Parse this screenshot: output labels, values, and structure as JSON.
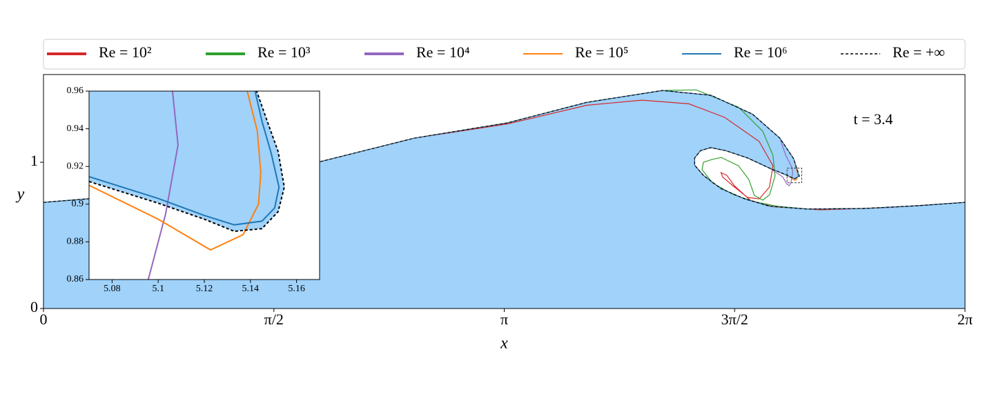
{
  "chart_data": [
    {
      "type": "line",
      "xlabel": "x",
      "ylabel": "y",
      "annotations": [
        "t = 3.4"
      ],
      "xlim": [
        0,
        6.2832
      ],
      "ylim": [
        0,
        1.6
      ],
      "xticks": [
        0,
        {
          "value": 1.5708,
          "label": "π/2"
        },
        {
          "value": 3.1416,
          "label": "π"
        },
        {
          "value": 4.7124,
          "label": "3π/2"
        },
        {
          "value": 6.2832,
          "label": "2π"
        }
      ],
      "yticks": [
        0,
        1
      ],
      "legend": "top-outside",
      "series": [
        {
          "name": "Re = 10²",
          "color": "#d62728",
          "x": [
            0,
            0.645,
            1.586,
            2.527,
            3.162,
            3.704,
            4.08,
            4.4,
            4.645,
            4.88,
            4.974,
            4.95,
            4.88,
            4.8,
            4.7,
            4.63,
            4.62,
            4.66,
            4.71,
            4.82,
            4.98,
            5.3,
            5.75,
            6.283
          ],
          "y": [
            0.726,
            0.778,
            0.929,
            1.165,
            1.262,
            1.39,
            1.425,
            1.4,
            1.307,
            1.142,
            0.976,
            0.83,
            0.75,
            0.76,
            0.84,
            0.9,
            0.93,
            0.91,
            0.84,
            0.74,
            0.695,
            0.675,
            0.69,
            0.726
          ]
        },
        {
          "name": "Re = 10³",
          "color": "#2ca02c",
          "x": [
            0,
            0.645,
            1.586,
            2.527,
            3.162,
            3.704,
            4.221,
            4.45,
            4.739,
            4.904,
            4.974,
            4.988,
            4.951,
            4.904,
            4.847,
            4.809,
            4.739,
            4.621,
            4.56,
            4.5,
            4.49,
            4.56,
            4.7,
            4.85,
            5.0,
            5.21,
            5.59,
            5.96,
            6.283
          ],
          "y": [
            0.726,
            0.778,
            0.929,
            1.165,
            1.269,
            1.41,
            1.491,
            1.495,
            1.377,
            1.212,
            1.047,
            0.906,
            0.778,
            0.741,
            0.774,
            0.882,
            0.976,
            1.033,
            1.02,
            1.0,
            0.95,
            0.86,
            0.78,
            0.73,
            0.7,
            0.68,
            0.684,
            0.703,
            0.726
          ]
        },
        {
          "name": "Re = 10⁴",
          "color": "#9467bd",
          "x": [
            0,
            0.645,
            1.586,
            2.527,
            3.162,
            3.704,
            4.221,
            4.551,
            4.833,
            5.021,
            5.06,
            5.105,
            5.108,
            5.103,
            5.096,
            5.085,
            5.07,
            5.04,
            4.95,
            4.8,
            4.65,
            4.55,
            4.48,
            4.44,
            4.44,
            4.5,
            4.62,
            4.78,
            4.95,
            5.21,
            5.59,
            5.96,
            6.283
          ],
          "y": [
            0.726,
            0.778,
            0.929,
            1.165,
            1.269,
            1.41,
            1.491,
            1.458,
            1.33,
            1.165,
            1.05,
            0.96,
            0.93,
            0.895,
            0.86,
            0.84,
            0.85,
            0.9,
            0.96,
            1.03,
            1.08,
            1.1,
            1.08,
            1.03,
            0.98,
            0.91,
            0.82,
            0.75,
            0.7,
            0.68,
            0.684,
            0.703,
            0.726
          ]
        },
        {
          "name": "Re = 10⁵",
          "color": "#ff7f0e",
          "x": [
            0,
            0.645,
            1.586,
            2.527,
            3.162,
            3.704,
            4.221,
            4.551,
            4.833,
            5.021,
            5.115,
            5.143,
            5.137,
            5.123,
            5.1,
            5.07,
            4.95,
            4.8,
            4.65,
            4.55,
            4.48,
            4.44,
            4.44,
            4.5,
            4.62,
            4.78,
            4.95,
            5.21,
            5.59,
            5.96,
            6.283
          ],
          "y": [
            0.726,
            0.778,
            0.929,
            1.165,
            1.269,
            1.41,
            1.491,
            1.458,
            1.33,
            1.165,
            1.024,
            0.917,
            0.884,
            0.876,
            0.892,
            0.91,
            0.96,
            1.03,
            1.08,
            1.1,
            1.08,
            1.03,
            0.98,
            0.91,
            0.82,
            0.75,
            0.7,
            0.68,
            0.684,
            0.703,
            0.726
          ]
        },
        {
          "name": "Re = 10⁶",
          "color": "#1f77b4",
          "x": [
            0,
            0.645,
            1.586,
            2.527,
            3.162,
            3.704,
            4.221,
            4.551,
            4.833,
            5.021,
            5.115,
            5.152,
            5.12,
            5.07,
            4.95,
            4.8,
            4.65,
            4.55,
            4.48,
            4.44,
            4.44,
            4.5,
            4.62,
            4.78,
            4.95,
            5.21,
            5.59,
            5.96,
            6.283
          ],
          "y": [
            0.726,
            0.778,
            0.929,
            1.165,
            1.269,
            1.41,
            1.491,
            1.458,
            1.33,
            1.165,
            1.024,
            0.905,
            0.888,
            0.91,
            0.96,
            1.03,
            1.08,
            1.1,
            1.08,
            1.03,
            0.98,
            0.91,
            0.82,
            0.75,
            0.7,
            0.68,
            0.684,
            0.703,
            0.726
          ]
        },
        {
          "name": "Re = +∞",
          "color": "#000000",
          "dash": true,
          "fill": {
            "color": "#a0d2fa",
            "to": "bottom"
          },
          "x": [
            0,
            0.645,
            1.586,
            2.527,
            3.162,
            3.704,
            4.221,
            4.551,
            4.833,
            5.021,
            5.115,
            5.154,
            5.12,
            5.07,
            4.95,
            4.8,
            4.65,
            4.55,
            4.48,
            4.44,
            4.44,
            4.5,
            4.62,
            4.78,
            4.95,
            5.21,
            5.59,
            5.96,
            6.283
          ],
          "y": [
            0.726,
            0.778,
            0.929,
            1.165,
            1.269,
            1.41,
            1.491,
            1.458,
            1.33,
            1.165,
            1.024,
            0.905,
            0.886,
            0.912,
            0.96,
            1.03,
            1.08,
            1.1,
            1.08,
            1.03,
            0.98,
            0.91,
            0.82,
            0.75,
            0.7,
            0.68,
            0.684,
            0.703,
            0.726
          ]
        }
      ]
    },
    {
      "type": "line",
      "xlim": [
        5.07,
        5.17
      ],
      "ylim": [
        0.86,
        0.96
      ],
      "xticks": [
        5.08,
        5.1,
        5.12,
        5.14,
        5.16
      ],
      "yticks": [
        0.86,
        0.88,
        0.9,
        0.92,
        0.94,
        0.96
      ],
      "zoom_box": true,
      "series": [
        {
          "color": "#9467bd",
          "x": [
            5.0957,
            5.1032,
            5.1086,
            5.1062
          ],
          "y": [
            0.86,
            0.8948,
            0.9314,
            0.96
          ]
        },
        {
          "color": "#ff7f0e",
          "x": [
            5.07,
            5.1,
            5.1227,
            5.1368,
            5.1435,
            5.1445,
            5.143,
            5.1386
          ],
          "y": [
            0.91,
            0.892,
            0.8757,
            0.8838,
            0.9,
            0.9168,
            0.9388,
            0.96
          ]
        },
        {
          "color": "#1f77b4",
          "x": [
            5.07,
            5.1,
            5.12,
            5.133,
            5.145,
            5.1505,
            5.1524,
            5.149,
            5.145,
            5.142
          ],
          "y": [
            0.9146,
            0.903,
            0.894,
            0.889,
            0.891,
            0.898,
            0.909,
            0.927,
            0.944,
            0.96
          ]
        },
        {
          "color": "#000000",
          "dash": true,
          "fill": {
            "color": "#a0d2fa",
            "to": "top"
          },
          "x": [
            5.07,
            5.1,
            5.12,
            5.133,
            5.145,
            5.152,
            5.1547,
            5.152,
            5.147,
            5.1427
          ],
          "y": [
            0.912,
            0.9005,
            0.892,
            0.8856,
            0.887,
            0.896,
            0.909,
            0.928,
            0.945,
            0.96
          ]
        }
      ]
    }
  ]
}
